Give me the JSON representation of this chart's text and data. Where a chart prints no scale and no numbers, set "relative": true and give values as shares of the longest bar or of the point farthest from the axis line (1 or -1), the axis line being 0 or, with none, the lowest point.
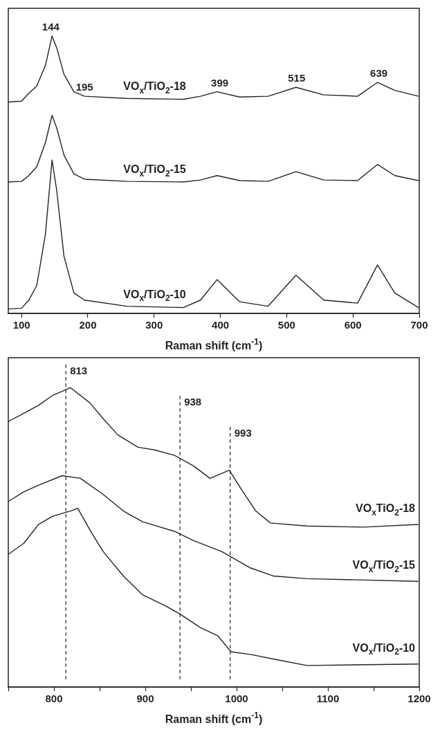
{
  "chart_data": [
    {
      "type": "line",
      "relative": true,
      "xlabel": "Raman shift (cm$^{-1}$)",
      "xlim": [
        80,
        700
      ],
      "xticks": [
        100,
        200,
        300,
        400,
        500,
        600,
        700
      ],
      "tick_labels": "x",
      "grid": false,
      "legend": false,
      "marker": "none",
      "line_style": "solid",
      "annotations": [
        {
          "text": "144",
          "x": 144,
          "y": 1.0
        },
        {
          "text": "195",
          "x": 195,
          "y": 0.783
        },
        {
          "text": "399",
          "x": 399,
          "y": 0.799
        },
        {
          "text": "515",
          "x": 515,
          "y": 0.815
        },
        {
          "text": "639",
          "x": 639,
          "y": 0.833
        }
      ],
      "series": [
        {
          "name": "VO$_{x}$/TiO$_{2}$-18",
          "color": "#222222",
          "x": [
            80,
            100,
            111,
            123,
            136,
            146,
            153,
            164,
            179,
            195,
            259,
            344,
            370,
            395,
            429,
            472,
            514,
            556,
            607,
            637,
            663,
            699
          ],
          "values": [
            0.762,
            0.765,
            0.794,
            0.82,
            0.894,
            1.0,
            0.958,
            0.862,
            0.799,
            0.783,
            0.775,
            0.772,
            0.783,
            0.799,
            0.78,
            0.783,
            0.815,
            0.788,
            0.783,
            0.833,
            0.804,
            0.783
          ]
        },
        {
          "name": "VO$_{x}$/TiO$_{2}$-15",
          "color": "#222222",
          "x": [
            80,
            100,
            111,
            123,
            136,
            146,
            153,
            164,
            179,
            195,
            259,
            344,
            370,
            395,
            429,
            472,
            514,
            556,
            607,
            637,
            663,
            699
          ],
          "values": [
            0.474,
            0.476,
            0.497,
            0.529,
            0.616,
            0.714,
            0.669,
            0.571,
            0.503,
            0.484,
            0.476,
            0.474,
            0.481,
            0.497,
            0.479,
            0.476,
            0.511,
            0.481,
            0.479,
            0.537,
            0.497,
            0.479
          ]
        },
        {
          "name": "VO$_{x}$/TiO$_{2}$-10",
          "color": "#222222",
          "x": [
            80,
            100,
            111,
            123,
            136,
            146,
            153,
            164,
            179,
            195,
            259,
            344,
            370,
            395,
            429,
            472,
            514,
            556,
            607,
            637,
            663,
            699
          ],
          "values": [
            0.016,
            0.019,
            0.048,
            0.101,
            0.286,
            0.553,
            0.444,
            0.206,
            0.074,
            0.048,
            0.026,
            0.021,
            0.048,
            0.122,
            0.042,
            0.026,
            0.138,
            0.048,
            0.037,
            0.175,
            0.074,
            0.021
          ]
        }
      ]
    },
    {
      "type": "line",
      "relative": true,
      "xlabel": "Raman shift (cm$^{-1}$)",
      "xlim": [
        750,
        1200
      ],
      "xticks": [
        {
          "value": 750,
          "label": null
        },
        800,
        {
          "value": 850,
          "label": null
        },
        900,
        {
          "value": 950,
          "label": null
        },
        1000,
        {
          "value": 1050,
          "label": null
        },
        1100,
        {
          "value": 1150,
          "label": null
        },
        1200
      ],
      "tick_labels": "x",
      "grid": false,
      "legend": false,
      "marker": "none",
      "line_style": "solid",
      "ref_lines": [
        {
          "axis": "x",
          "value": 813,
          "label": "813",
          "color": "#222222",
          "line_style": "dashed"
        },
        {
          "axis": "x",
          "value": 938,
          "label": "938",
          "color": "#222222",
          "line_style": "dashed"
        },
        {
          "axis": "x",
          "value": 993,
          "label": "993",
          "color": "#222222",
          "line_style": "dashed"
        }
      ],
      "series": [
        {
          "name": "VO$_{x}$TiO$_{2}$-18",
          "color": "#222222",
          "x": [
            750,
            767,
            783,
            798,
            818,
            839,
            854,
            870,
            892,
            910,
            932,
            953,
            971,
            992,
            1005,
            1021,
            1037,
            1077,
            1139,
            1199
          ],
          "values": [
            0.887,
            0.914,
            0.941,
            0.973,
            1.0,
            0.95,
            0.896,
            0.842,
            0.801,
            0.792,
            0.774,
            0.738,
            0.697,
            0.724,
            0.661,
            0.588,
            0.548,
            0.538,
            0.534,
            0.543
          ]
        },
        {
          "name": "VO$_{x}$/TiO$_{2}$-15",
          "color": "#222222",
          "x": [
            750,
            767,
            783,
            809,
            829,
            854,
            876,
            897,
            932,
            953,
            984,
            1015,
            1040,
            1077,
            1199
          ],
          "values": [
            0.62,
            0.652,
            0.674,
            0.706,
            0.697,
            0.643,
            0.588,
            0.552,
            0.52,
            0.489,
            0.452,
            0.398,
            0.371,
            0.362,
            0.353
          ]
        },
        {
          "name": "VO$_{x}$/TiO$_{2}$-10",
          "color": "#222222",
          "x": [
            750,
            767,
            783,
            798,
            818,
            826,
            841,
            854,
            876,
            897,
            922,
            938,
            960,
            979,
            994,
            1015,
            1046,
            1077,
            1199
          ],
          "values": [
            0.443,
            0.48,
            0.543,
            0.57,
            0.588,
            0.597,
            0.516,
            0.452,
            0.371,
            0.308,
            0.271,
            0.244,
            0.199,
            0.172,
            0.118,
            0.109,
            0.09,
            0.072,
            0.077
          ]
        }
      ]
    }
  ]
}
